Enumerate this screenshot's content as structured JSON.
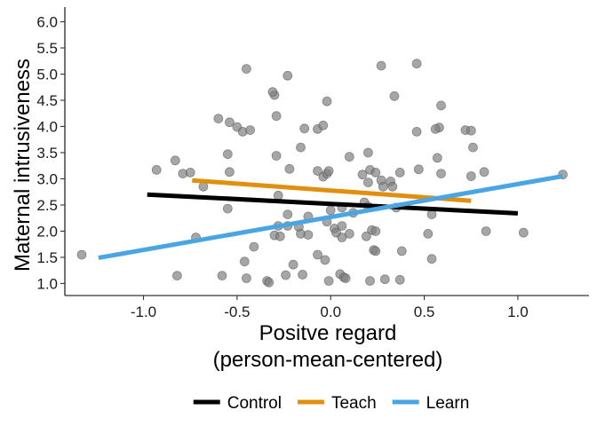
{
  "chart_data": {
    "type": "scatter",
    "title": "",
    "xlabel": [
      "Positve regard",
      "(person-mean-centered)"
    ],
    "ylabel": "Maternal intrusiveness",
    "xlim": [
      -1.42,
      1.38
    ],
    "ylim": [
      0.77,
      6.28
    ],
    "x_ticks": [
      -1.0,
      -0.5,
      0.0,
      0.5,
      1.0
    ],
    "x_tick_labels": [
      "-1.0",
      "-0.5",
      "0.0",
      "0.5",
      "1.0"
    ],
    "y_ticks": [
      1.0,
      1.5,
      2.0,
      2.5,
      3.0,
      3.5,
      4.0,
      4.5,
      5.0,
      5.5,
      6.0
    ],
    "y_tick_labels": [
      "1.0",
      "1.5",
      "2.0",
      "2.5",
      "3.0",
      "3.5",
      "4.0",
      "4.5",
      "5.0",
      "5.5",
      "6.0"
    ],
    "grid": false,
    "legend_position": "bottom",
    "points": [
      [
        -1.33,
        1.55
      ],
      [
        -0.82,
        1.15
      ],
      [
        -0.72,
        1.88
      ],
      [
        -0.68,
        2.85
      ],
      [
        -0.79,
        3.1
      ],
      [
        -0.75,
        3.12
      ],
      [
        -0.93,
        3.17
      ],
      [
        -0.83,
        3.35
      ],
      [
        -0.58,
        1.15
      ],
      [
        -0.45,
        1.1
      ],
      [
        -0.46,
        1.42
      ],
      [
        -0.41,
        1.7
      ],
      [
        -0.55,
        2.43
      ],
      [
        -0.54,
        3.13
      ],
      [
        -0.55,
        3.47
      ],
      [
        -0.6,
        4.15
      ],
      [
        -0.54,
        4.08
      ],
      [
        -0.5,
        3.99
      ],
      [
        -0.47,
        3.9
      ],
      [
        -0.43,
        3.93
      ],
      [
        -0.45,
        5.1
      ],
      [
        -0.34,
        1.05
      ],
      [
        -0.33,
        1.02
      ],
      [
        -0.3,
        1.92
      ],
      [
        -0.27,
        1.9
      ],
      [
        -0.28,
        2.1
      ],
      [
        -0.23,
        2.1
      ],
      [
        -0.28,
        2.68
      ],
      [
        -0.29,
        3.44
      ],
      [
        -0.22,
        3.19
      ],
      [
        -0.29,
        4.2
      ],
      [
        -0.3,
        4.6
      ],
      [
        -0.31,
        4.66
      ],
      [
        -0.23,
        4.97
      ],
      [
        -0.24,
        1.16
      ],
      [
        -0.2,
        1.36
      ],
      [
        -0.15,
        1.17
      ],
      [
        -0.23,
        2.32
      ],
      [
        -0.17,
        2.08
      ],
      [
        -0.16,
        1.95
      ],
      [
        -0.12,
        1.93
      ],
      [
        -0.16,
        3.6
      ],
      [
        -0.14,
        3.96
      ],
      [
        -0.07,
        3.95
      ],
      [
        -0.12,
        2.28
      ],
      [
        -0.07,
        3.15
      ],
      [
        -0.04,
        3.04
      ],
      [
        -0.02,
        3.1
      ],
      [
        -0.01,
        3.15
      ],
      [
        -0.04,
        4.02
      ],
      [
        -0.02,
        4.48
      ],
      [
        -0.02,
        2.18
      ],
      [
        0.0,
        2.4
      ],
      [
        0.02,
        2.05
      ],
      [
        0.03,
        1.97
      ],
      [
        0.06,
        1.88
      ],
      [
        -0.07,
        1.55
      ],
      [
        -0.03,
        1.45
      ],
      [
        0.05,
        1.18
      ],
      [
        0.07,
        1.12
      ],
      [
        0.08,
        1.1
      ],
      [
        -0.01,
        1.05
      ],
      [
        0.1,
        1.95
      ],
      [
        0.12,
        2.35
      ],
      [
        0.1,
        3.42
      ],
      [
        0.06,
        2.1
      ],
      [
        0.18,
        2.55
      ],
      [
        0.17,
        3.08
      ],
      [
        0.2,
        2.47
      ],
      [
        0.21,
        3.17
      ],
      [
        0.24,
        3.12
      ],
      [
        0.2,
        2.93
      ],
      [
        0.22,
        2.02
      ],
      [
        0.24,
        2.0
      ],
      [
        0.19,
        1.9
      ],
      [
        0.23,
        1.64
      ],
      [
        0.24,
        1.62
      ],
      [
        0.21,
        1.05
      ],
      [
        0.29,
        1.08
      ],
      [
        0.2,
        3.5
      ],
      [
        0.27,
        2.97
      ],
      [
        0.28,
        2.85
      ],
      [
        0.32,
        2.95
      ],
      [
        0.33,
        2.85
      ],
      [
        0.27,
        5.16
      ],
      [
        0.34,
        4.58
      ],
      [
        0.37,
        3.12
      ],
      [
        0.38,
        1.62
      ],
      [
        0.37,
        1.07
      ],
      [
        0.35,
        2.45
      ],
      [
        0.46,
        5.2
      ],
      [
        0.47,
        3.18
      ],
      [
        0.46,
        3.9
      ],
      [
        0.52,
        1.95
      ],
      [
        0.54,
        1.47
      ],
      [
        0.54,
        2.32
      ],
      [
        0.57,
        3.4
      ],
      [
        0.59,
        3.1
      ],
      [
        0.58,
        3.98
      ],
      [
        0.59,
        4.4
      ],
      [
        0.56,
        3.95
      ],
      [
        0.75,
        3.05
      ],
      [
        0.72,
        3.93
      ],
      [
        0.75,
        3.92
      ],
      [
        0.76,
        3.6
      ],
      [
        0.82,
        3.13
      ],
      [
        0.83,
        2.0
      ],
      [
        1.03,
        1.97
      ],
      [
        1.24,
        3.08
      ],
      [
        0.06,
        2.45
      ]
    ],
    "series": [
      {
        "name": "Control",
        "color": "#000000",
        "x": [
          -0.98,
          1.0
        ],
        "y": [
          2.7,
          2.34
        ]
      },
      {
        "name": "Teach",
        "color": "#E0900F",
        "x": [
          -0.74,
          0.75
        ],
        "y": [
          2.97,
          2.58
        ]
      },
      {
        "name": "Learn",
        "color": "#4AA5E3",
        "x": [
          -1.24,
          1.24
        ],
        "y": [
          1.49,
          3.05
        ]
      }
    ],
    "point_color": "#808080"
  }
}
